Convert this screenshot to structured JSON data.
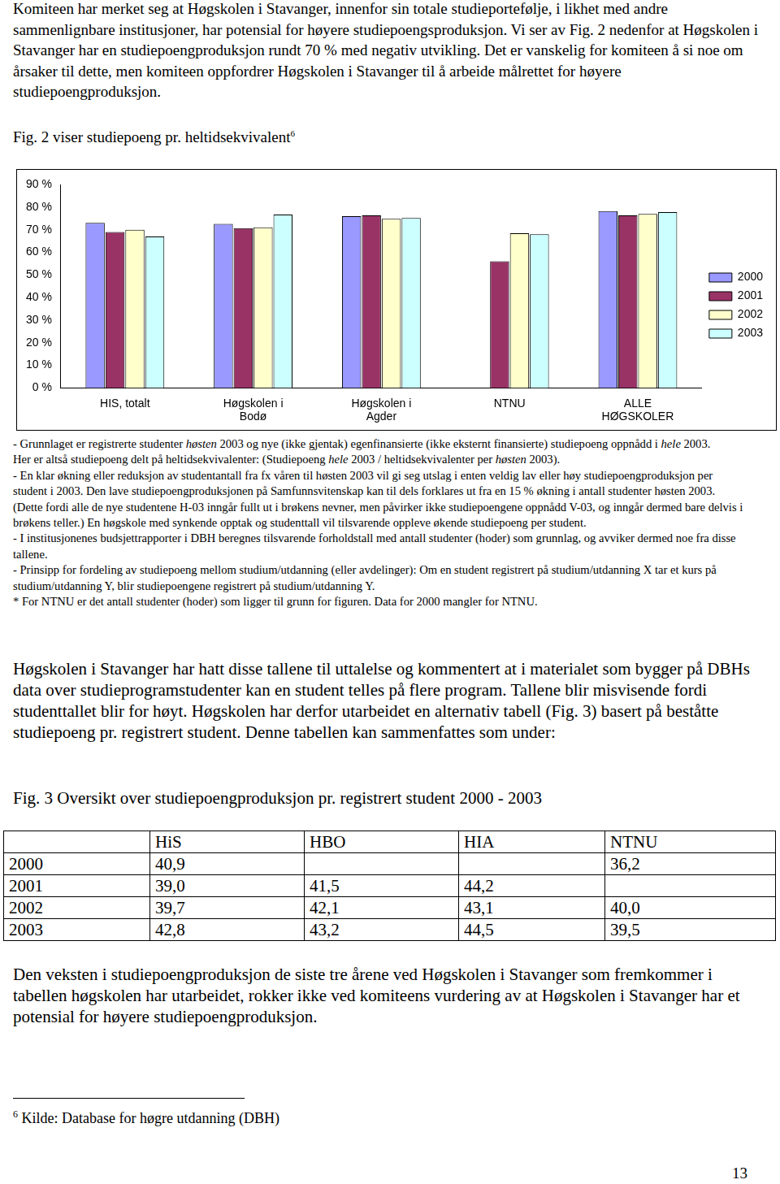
{
  "intro_paragraph": "Komiteen har merket seg at Høgskolen i Stavanger, innenfor sin totale studieportefølje, i likhet med andre sammenlignbare institusjoner, har potensial for høyere studiepoengsproduksjon. Vi ser av Fig. 2 nedenfor at Høgskolen i Stavanger har en studiepoengproduksjon rundt 70 % med negativ utvikling. Det er vanskelig for komiteen å si noe om årsaker til dette, men komiteen oppfordrer Høgskolen i Stavanger til å arbeide målrettet for høyere studiepoengproduksjon.",
  "figure2_caption": {
    "text": "Fig. 2 viser studiepoeng pr. heltidsekvivalent",
    "footnote_ref": "6"
  },
  "chart_data": {
    "type": "bar",
    "categories": [
      [
        "HIS, totalt"
      ],
      [
        "Høgskolen i",
        "Bodø"
      ],
      [
        "Høgskolen i",
        "Agder"
      ],
      [
        "NTNU"
      ],
      [
        "ALLE",
        "HØGSKOLER"
      ]
    ],
    "series": [
      {
        "name": "2000",
        "color": "#9999ff",
        "values": [
          73,
          72.6,
          76,
          null,
          78.2
        ]
      },
      {
        "name": "2001",
        "color": "#993366",
        "values": [
          69,
          70.7,
          76.3,
          56,
          76.3
        ]
      },
      {
        "name": "2002",
        "color": "#ffffcc",
        "values": [
          70,
          71,
          74.8,
          68.4,
          77
        ]
      },
      {
        "name": "2003",
        "color": "#ccffff",
        "values": [
          67,
          76.7,
          75.2,
          68,
          77.8
        ]
      }
    ],
    "ylim": [
      0,
      90
    ],
    "yticks": [
      {
        "value": 0,
        "label": "0 %"
      },
      {
        "value": 10,
        "label": "10 %"
      },
      {
        "value": 20,
        "label": "20 %"
      },
      {
        "value": 30,
        "label": "30 %"
      },
      {
        "value": 40,
        "label": "40 %"
      },
      {
        "value": 50,
        "label": "50 %"
      },
      {
        "value": 60,
        "label": "60 %"
      },
      {
        "value": 70,
        "label": "70 %"
      },
      {
        "value": 80,
        "label": "80 %"
      },
      {
        "value": 90,
        "label": "90 %"
      }
    ],
    "grid": false,
    "legend": "right"
  },
  "notes": [
    [
      {
        "text": "- Grunnlaget er registrerte studenter "
      },
      {
        "text": "høsten",
        "italic": true
      },
      {
        "text": " 2003 og nye (ikke gjentak) egenfinansierte (ikke eksternt finansierte) studiepoeng oppnådd i "
      },
      {
        "text": "hele",
        "italic": true
      },
      {
        "text": " 2003."
      }
    ],
    [
      {
        "text": "Her er altså studiepoeng delt på heltidsekvivalenter: (Studiepoeng "
      },
      {
        "text": "hele",
        "italic": true
      },
      {
        "text": " 2003 / heltidsekvivalenter per "
      },
      {
        "text": "høsten",
        "italic": true
      },
      {
        "text": " 2003)."
      }
    ],
    [
      {
        "text": "- En klar økning eller reduksjon av studentantall fra fx våren til høsten 2003 vil gi seg utslag i enten veldig lav eller høy studiepoengproduksjon per student i 2003. Den lave studiepoengproduksjonen på Samfunnsvitenskap kan til dels forklares ut fra en 15 % økning i antall studenter høsten 2003. (Dette fordi alle de nye studentene H-03 inngår fullt ut i brøkens nevner, men påvirker ikke studiepoengene oppnådd V-03, og inngår dermed bare delvis i brøkens teller.) En høgskole med synkende opptak og studenttall vil tilsvarende oppleve økende studiepoeng per student."
      }
    ],
    [
      {
        "text": "- I institusjonenes budsjettrapporter i DBH beregnes tilsvarende forholdstall med antall studenter (hoder) som grunnlag, og avviker dermed noe fra disse tallene."
      }
    ],
    [
      {
        "text": "- Prinsipp for fordeling av studiepoeng mellom studium/utdanning (eller avdelinger): Om en student registrert på studium/utdanning X tar et kurs på studium/utdanning Y, blir studiepoengene registrert på studium/utdanning Y."
      }
    ],
    [
      {
        "text": "* For NTNU er det antall studenter (hoder) som ligger til grunn for figuren. Data for 2000 mangler for NTNU."
      }
    ]
  ],
  "paragraph2": "Høgskolen i Stavanger har hatt disse tallene til uttalelse og kommentert at i materialet som bygger på DBHs data over studieprogramstudenter kan en student telles på flere program. Tallene blir misvisende fordi studenttallet blir for høyt. Høgskolen har derfor utarbeidet en alternativ tabell (Fig. 3) basert på beståtte studiepoeng pr. registrert student. Denne tabellen kan sammenfattes som under:",
  "figure3_caption": "Fig. 3 Oversikt over studiepoengproduksjon pr. registrert student 2000 - 2003",
  "table": {
    "header": [
      null,
      "HiS",
      "HBO",
      "HIA",
      "NTNU"
    ],
    "rows": [
      [
        "2000",
        "40,9",
        null,
        null,
        "36,2"
      ],
      [
        "2001",
        "39,0",
        "41,5",
        "44,2",
        null
      ],
      [
        "2002",
        "39,7",
        "42,1",
        "43,1",
        "40,0"
      ],
      [
        "2003",
        "42,8",
        "43,2",
        "44,5",
        "39,5"
      ]
    ]
  },
  "paragraph3": "Den veksten i studiepoengproduksjon de siste tre årene ved Høgskolen i Stavanger som fremkommer i tabellen høgskolen har utarbeidet, rokker ikke ved komiteens vurdering av at Høgskolen i Stavanger har et potensial for høyere studiepoengproduksjon.",
  "footnote": {
    "ref": "6",
    "text": "Kilde: Database for høgre utdanning (DBH)"
  },
  "page_number": "13"
}
